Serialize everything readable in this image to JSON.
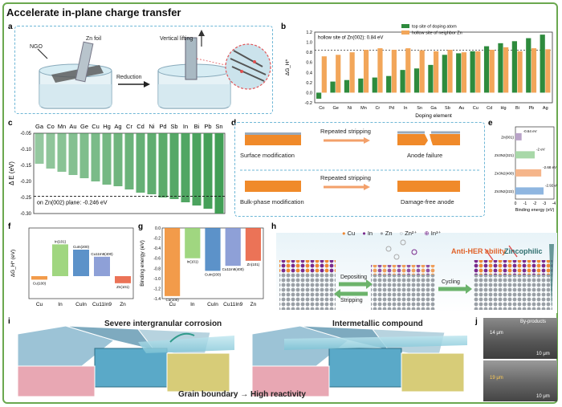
{
  "figure_title": "Accelerate in-plane charge transfer",
  "panels": {
    "a": {
      "label": "a",
      "texts": [
        "Zn foil",
        "Vertical lifting",
        "NGO",
        "Reduction"
      ]
    },
    "b": {
      "label": "b"
    },
    "c": {
      "label": "c"
    },
    "d": {
      "label": "d",
      "row1": {
        "left": "Surface modification",
        "arrow": "Repeated stripping",
        "right": "Anode failure"
      },
      "row2": {
        "left": "Bulk-phase modification",
        "arrow": "Repeated stripping",
        "right": "Damage-free anode"
      }
    },
    "e": {
      "label": "e"
    },
    "f": {
      "label": "f"
    },
    "g": {
      "label": "g"
    },
    "h": {
      "label": "h",
      "legend": [
        "Cu",
        "In",
        "Zn",
        "Zn²⁺",
        "In³⁺"
      ],
      "depositing": "Depositing",
      "stripping": "Stripping",
      "cycling": "Cycling",
      "anti_her": "Anti-HER ability",
      "zincophilic": "Zincophilic"
    },
    "i": {
      "label": "i",
      "left_title": "Severe intergranular corrosion",
      "right_title": "Intermetallic compound",
      "bottom": "Grain boundary → High reactivity"
    },
    "j": {
      "label": "j",
      "byproducts": "By-products",
      "scale1": "10 μm",
      "scale2": "10 μm",
      "thick1": "14 μm",
      "thick2": "19 μm"
    }
  },
  "chart_data": [
    {
      "id": "b",
      "type": "bar",
      "categories": [
        "Co",
        "Ge",
        "Ni",
        "Mn",
        "Cr",
        "Pd",
        "In",
        "Sn",
        "Ga",
        "Sb",
        "Au",
        "Cu",
        "Cd",
        "Hg",
        "Bi",
        "Pb",
        "Ag"
      ],
      "series": [
        {
          "name": "top site of doping atom",
          "color": "#2e8b3d",
          "values": [
            -0.12,
            0.22,
            0.25,
            0.28,
            0.3,
            0.33,
            0.45,
            0.48,
            0.55,
            0.75,
            0.78,
            0.82,
            0.92,
            0.98,
            1.02,
            1.08,
            1.15
          ]
        },
        {
          "name": "hollow site of neighbor Zn",
          "color": "#f2a65a",
          "values": [
            0.72,
            0.75,
            0.8,
            0.85,
            0.88,
            0.85,
            0.88,
            0.84,
            0.82,
            0.85,
            0.8,
            0.82,
            0.85,
            0.9,
            0.82,
            0.88,
            0.86
          ]
        }
      ],
      "ylabel": "ΔG_H*",
      "xlabel": "Doping element",
      "ylim": [
        -0.2,
        1.2
      ],
      "yticks": [
        -0.2,
        0.0,
        0.2,
        0.4,
        0.6,
        0.8,
        1.0,
        1.2
      ],
      "annotation": "hollow site of Zn(002): 0.84 eV",
      "ref_line": 0.84
    },
    {
      "id": "c",
      "type": "bar",
      "categories": [
        "Ga",
        "Co",
        "Mn",
        "Au",
        "Ge",
        "Cu",
        "Hg",
        "Ag",
        "Cr",
        "Cd",
        "Ni",
        "Pd",
        "Sb",
        "In",
        "Bi",
        "Pb",
        "Sn"
      ],
      "values": [
        -0.145,
        -0.16,
        -0.17,
        -0.18,
        -0.19,
        -0.2,
        -0.21,
        -0.215,
        -0.225,
        -0.235,
        -0.24,
        -0.25,
        -0.255,
        -0.265,
        -0.275,
        -0.285,
        -0.3
      ],
      "ylabel": "Δ E (eV)",
      "ylim": [
        -0.3,
        -0.05
      ],
      "yticks": [
        -0.3,
        -0.25,
        -0.2,
        -0.15,
        -0.1,
        -0.05
      ],
      "annotation": "on Zn(002) plane: -0.246 eV",
      "ref_line": -0.246
    },
    {
      "id": "e",
      "type": "bar",
      "orientation": "horizontal",
      "categories": [
        "Zn(001)",
        "Zn3N2(321)",
        "Zn3N2(400)",
        "Zn3N2(222)"
      ],
      "values": [
        -0.64,
        -2,
        -2.68,
        -2.92
      ],
      "labels": [
        "-0.64 eV",
        "-2 eV",
        "-2.68 eV",
        "-2.92 eV"
      ],
      "colors": [
        "#b9a3c8",
        "#a8d8a8",
        "#f5b58a",
        "#8fb6e0"
      ],
      "xlabel": "Binding energy (eV)",
      "xlim": [
        0,
        -4
      ],
      "xticks": [
        0,
        -1,
        -2,
        -3,
        -4
      ]
    },
    {
      "id": "f",
      "type": "bar",
      "categories": [
        "Cu",
        "In",
        "CuIn",
        "Cu11In9",
        "Zn"
      ],
      "tags": [
        "Cu(100)",
        "In(101)",
        "CuIn(200)",
        "Cu11In9(400)",
        "Zn(101)"
      ],
      "ylabel": "ΔG_H* (eV)",
      "values": [
        -0.1,
        0.9,
        0.75,
        0.55,
        -0.2
      ]
    },
    {
      "id": "g",
      "type": "bar",
      "categories": [
        "Cu",
        "In",
        "CuIn",
        "Cu11In9",
        "Zn"
      ],
      "tags": [
        "Cu(100)",
        "In(101)",
        "CuIn(200)",
        "Cu11In9(400)",
        "Zn(101)"
      ],
      "ylabel": "Binding energy (eV)",
      "ylim": [
        -1.4,
        0.0
      ],
      "yticks": [
        0.0,
        -0.2,
        -0.4,
        -0.6,
        -0.8,
        -1.0,
        -1.2,
        -1.4
      ],
      "values": [
        -1.35,
        -0.6,
        -0.85,
        -0.75,
        -0.65
      ]
    }
  ]
}
